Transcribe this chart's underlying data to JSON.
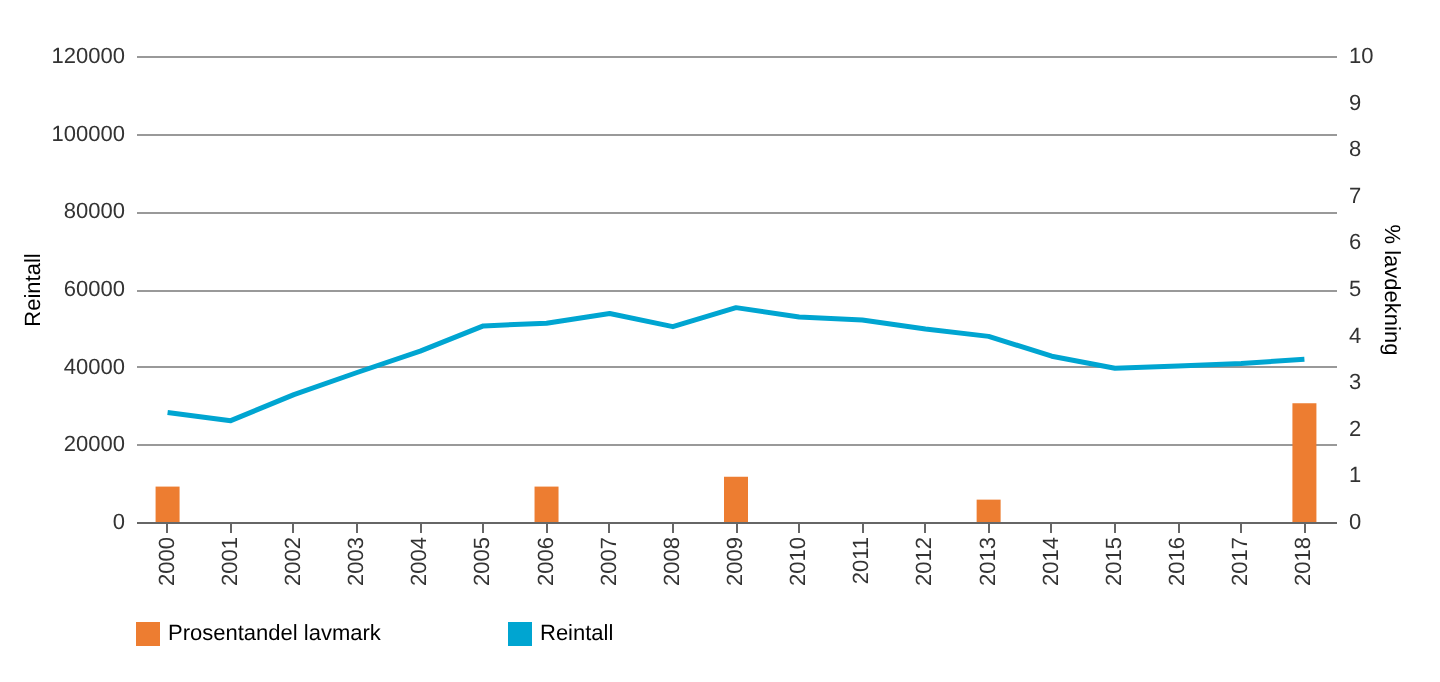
{
  "chart_data": {
    "type": "bar",
    "ylabel": "Reintall",
    "y2label": "% lavdekning",
    "categories": [
      "2000",
      "2001",
      "2002",
      "2003",
      "2004",
      "2005",
      "2006",
      "2007",
      "2008",
      "2009",
      "2010",
      "2011",
      "2012",
      "2013",
      "2014",
      "2015",
      "2016",
      "2017",
      "2018"
    ],
    "series": [
      {
        "name": "Prosentandel lavmark",
        "axis": "y2",
        "color": "#ed7d31",
        "values": [
          0.76,
          null,
          null,
          null,
          null,
          null,
          0.76,
          null,
          null,
          0.97,
          null,
          null,
          null,
          0.48,
          null,
          null,
          null,
          null,
          2.55
        ]
      },
      {
        "name": "Reintall",
        "type": "line",
        "color": "#00a5d1",
        "values": [
          28200,
          26100,
          32800,
          38500,
          44000,
          50500,
          51200,
          53700,
          50300,
          55200,
          52800,
          52000,
          49700,
          47800,
          42700,
          39600,
          40200,
          40800,
          41900
        ]
      }
    ],
    "ylim": [
      0,
      120000
    ],
    "yticks": [
      0,
      20000,
      40000,
      60000,
      80000,
      100000,
      120000
    ],
    "y2lim": [
      0,
      10
    ],
    "y2ticks": [
      0,
      1,
      2,
      3,
      4,
      5,
      6,
      7,
      8,
      9,
      10
    ],
    "grid": "y",
    "legend": "bottom",
    "marker": "none"
  }
}
